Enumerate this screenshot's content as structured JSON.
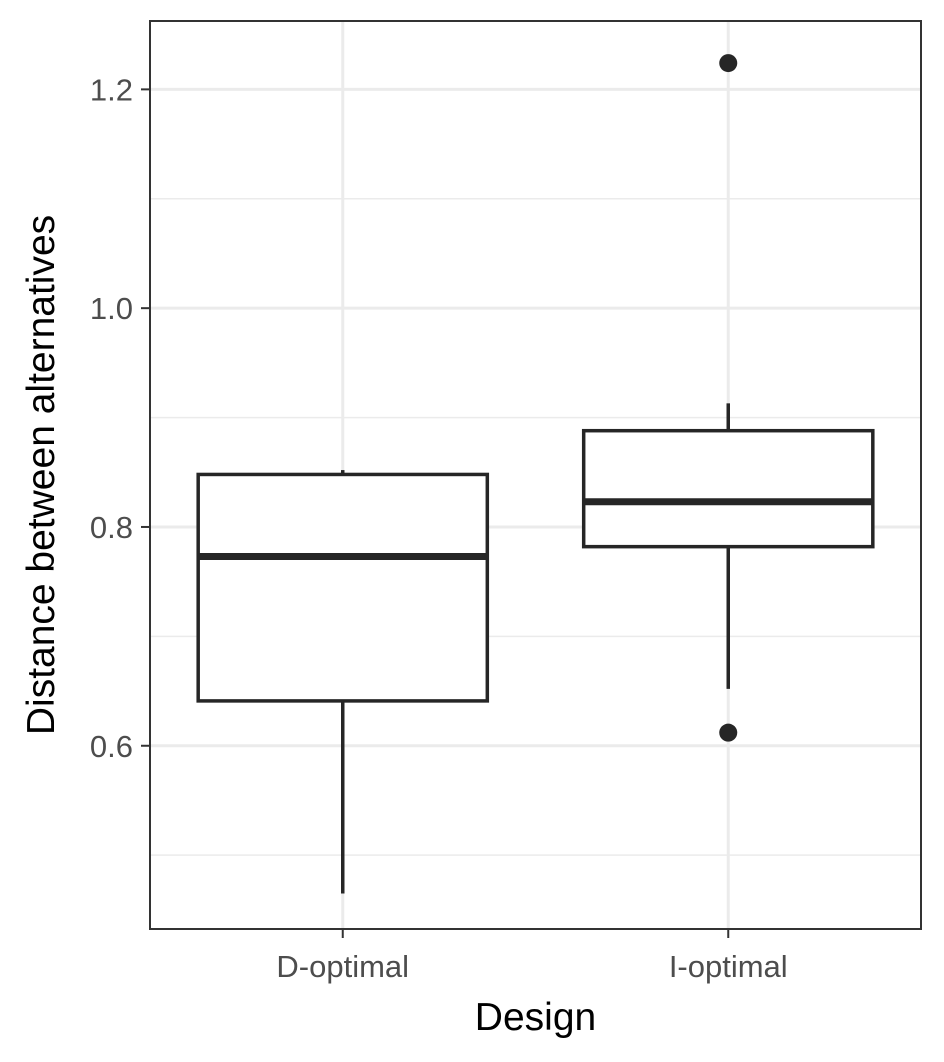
{
  "chart_data": {
    "type": "boxplot",
    "title": "",
    "xlabel": "Design",
    "ylabel": "Distance between alternatives",
    "ylim": [
      0.4325,
      1.2625
    ],
    "y_major_ticks": [
      0.6,
      0.8,
      1.0,
      1.2
    ],
    "y_tick_labels": [
      "0.6",
      "0.8",
      "1.0",
      "1.2"
    ],
    "y_minor_ticks": [
      0.5,
      0.7,
      0.9,
      1.1
    ],
    "grid": true,
    "categories": [
      "D-optimal",
      "I-optimal"
    ],
    "boxes": [
      {
        "category": "D-optimal",
        "whisker_low": 0.465,
        "q1": 0.641,
        "median": 0.773,
        "q3": 0.848,
        "whisker_high": 0.852,
        "outliers": []
      },
      {
        "category": "I-optimal",
        "whisker_low": 0.652,
        "q1": 0.782,
        "median": 0.823,
        "q3": 0.888,
        "whisker_high": 0.913,
        "outliers": [
          1.224,
          0.612
        ]
      }
    ],
    "colors": {
      "box_stroke": "#262626",
      "box_fill": "#ffffff",
      "grid": "#ebebeb",
      "panel_border": "#333333",
      "point": "#262626"
    }
  }
}
